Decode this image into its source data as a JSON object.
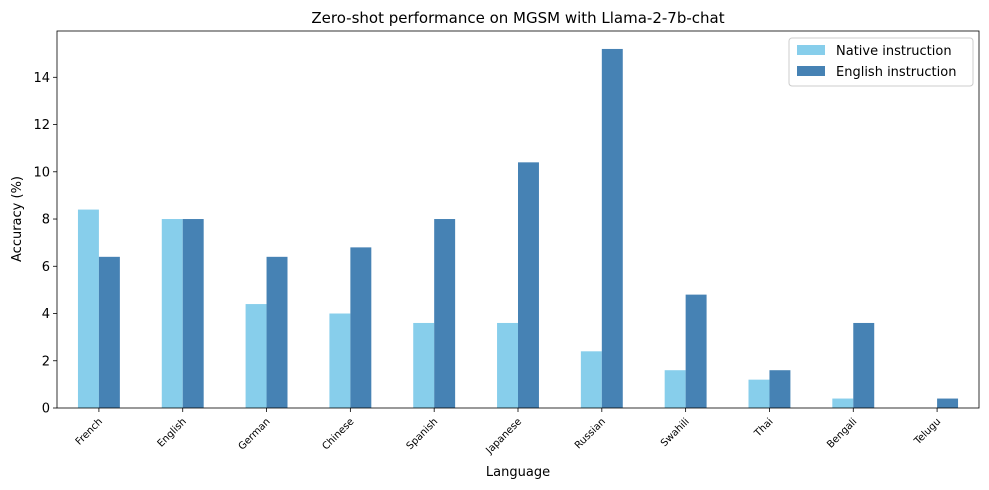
{
  "chart_data": {
    "type": "bar",
    "title": "Zero-shot performance on MGSM with Llama-2-7b-chat",
    "xlabel": "Language",
    "ylabel": "Accuracy (%)",
    "categories": [
      "French",
      "English",
      "German",
      "Chinese",
      "Spanish",
      "Japanese",
      "Russian",
      "Swahili",
      "Thai",
      "Bengali",
      "Telugu"
    ],
    "series": [
      {
        "name": "Native instruction",
        "color": "#87CEEB",
        "values": [
          8.4,
          8.0,
          4.4,
          4.0,
          3.6,
          3.6,
          2.4,
          1.6,
          1.2,
          0.4,
          0.0
        ]
      },
      {
        "name": "English instruction",
        "color": "#4682B4",
        "values": [
          6.4,
          8.0,
          6.4,
          6.8,
          8.0,
          10.4,
          15.2,
          4.8,
          1.6,
          3.6,
          0.4
        ]
      }
    ],
    "ylim": [
      0,
      15.96
    ],
    "yticks": [
      0,
      2,
      4,
      6,
      8,
      10,
      12,
      14
    ],
    "grid": false,
    "legend_position": "top-right"
  }
}
